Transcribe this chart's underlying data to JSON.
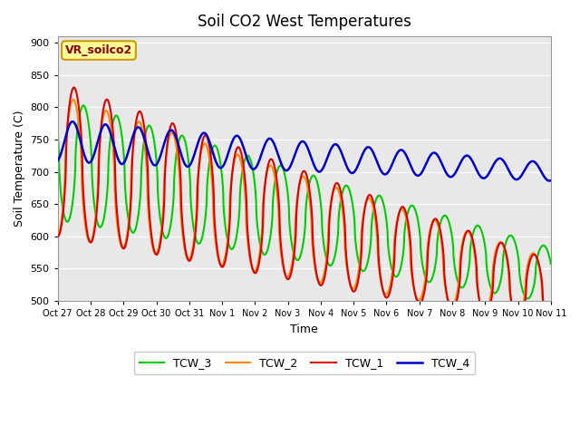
{
  "title": "Soil CO2 West Temperatures",
  "xlabel": "Time",
  "ylabel": "Soil Temperature (C)",
  "ylim": [
    500,
    910
  ],
  "yticks": [
    500,
    550,
    600,
    650,
    700,
    750,
    800,
    850,
    900
  ],
  "annotation": "VR_soilco2",
  "colors": {
    "TCW_1": "#dd0000",
    "TCW_2": "#ff8800",
    "TCW_3": "#00cc00",
    "TCW_4": "#0000cc"
  },
  "xtick_labels": [
    "Oct 27",
    "Oct 28",
    "Oct 29",
    "Oct 30",
    "Oct 31",
    "Nov 1",
    "Nov 2",
    "Nov 3",
    "Nov 4",
    "Nov 5",
    "Nov 6",
    "Nov 7",
    "Nov 8",
    "Nov 9",
    "Nov 10",
    "Nov 11"
  ],
  "background_color": "#e8e8e8",
  "figure_color": "#ffffff",
  "linewidth": 1.5,
  "n_days": 15,
  "pts_per_day": 120
}
